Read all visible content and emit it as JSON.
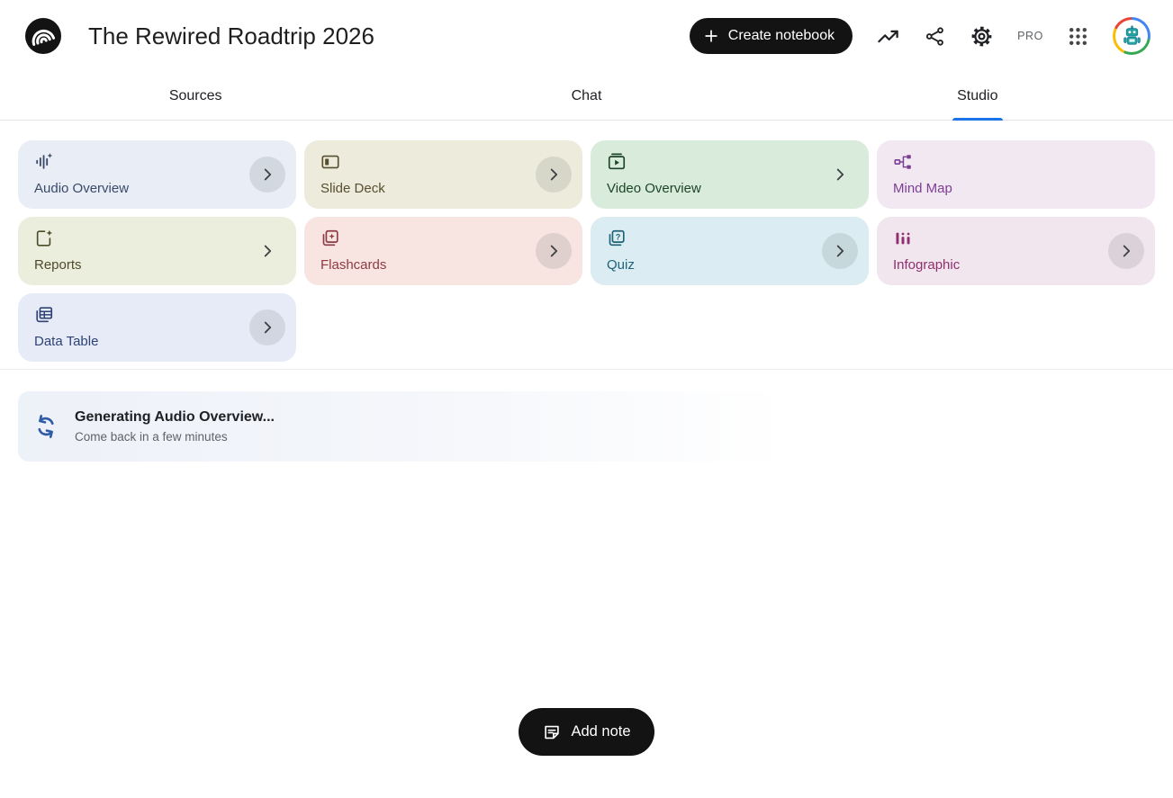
{
  "header": {
    "title": "The Rewired Roadtrip 2026",
    "create_button_label": "Create notebook",
    "pro_badge": "PRO",
    "logo_icon": "notebooklm-logo",
    "action_icons": [
      "trending-up-icon",
      "share-icon",
      "gear-icon",
      "google-apps-grid-icon",
      "user-avatar"
    ]
  },
  "tabs": {
    "items": [
      {
        "label": "Sources",
        "active": false
      },
      {
        "label": "Chat",
        "active": false
      },
      {
        "label": "Studio",
        "active": true
      }
    ]
  },
  "studio": {
    "tools": [
      {
        "label": "Audio Overview",
        "icon": "audio-overview-icon",
        "bg": "#E8EDF6",
        "fg": "#3B4A68",
        "chevron": "circle"
      },
      {
        "label": "Slide Deck",
        "icon": "slide-deck-icon",
        "bg": "#ECEBDC",
        "fg": "#57502F",
        "chevron": "circle"
      },
      {
        "label": "Video Overview",
        "icon": "video-overview-icon",
        "bg": "#D9EBDB",
        "fg": "#1C4527",
        "chevron": "plain"
      },
      {
        "label": "Mind Map",
        "icon": "mind-map-icon",
        "bg": "#F1E8F2",
        "fg": "#7C3E92",
        "chevron": "none"
      },
      {
        "label": "Reports",
        "icon": "reports-icon",
        "bg": "#ECEEDD",
        "fg": "#4E4B2B",
        "chevron": "plain"
      },
      {
        "label": "Flashcards",
        "icon": "flashcards-icon",
        "bg": "#F8E4E1",
        "fg": "#8E3A44",
        "chevron": "circle"
      },
      {
        "label": "Quiz",
        "icon": "quiz-icon",
        "bg": "#DBEDF2",
        "fg": "#1E6277",
        "chevron": "circle"
      },
      {
        "label": "Infographic",
        "icon": "infographic-icon",
        "bg": "#F2E6EE",
        "fg": "#8E2F6E",
        "chevron": "circle"
      },
      {
        "label": "Data Table",
        "icon": "data-table-icon",
        "bg": "#E7EBF7",
        "fg": "#2E4374",
        "chevron": "circle"
      }
    ],
    "status": {
      "title": "Generating Audio Overview...",
      "subtitle": "Come back in a few minutes",
      "icon": "sync-icon",
      "icon_color": "#2F5BA7"
    }
  },
  "footer": {
    "add_note_label": "Add note"
  },
  "colors": {
    "accent": "#1A73E8",
    "pill_button_bg": "#131314"
  }
}
